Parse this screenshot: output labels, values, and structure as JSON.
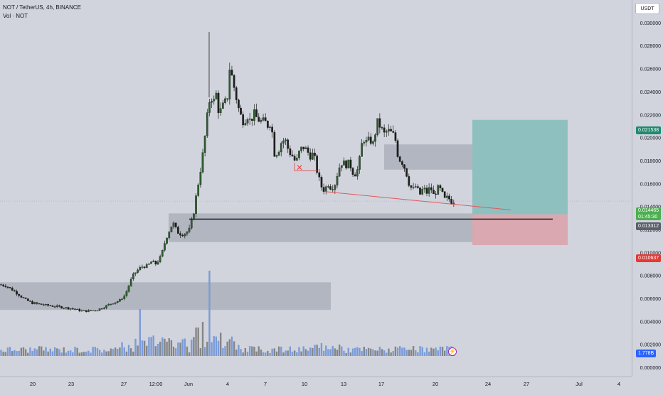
{
  "legend": {
    "symbol_line": "NOT / TetherUS, 4h, BINANCE",
    "volume_line": "Vol · NOT"
  },
  "currency_label": "USDT",
  "price_tags": {
    "take_profit": "0.021538",
    "last_price": "0.014465",
    "countdown": "01:45:30",
    "entry": "0.013312",
    "stop_loss": "0.010637",
    "volume": "1.778B"
  },
  "colors": {
    "background": "#d1d4dc",
    "candle_up": "#2e5e2e",
    "candle_down": "#1e1e1e",
    "volume_up": "#7b9bd8",
    "volume_down": "#858585",
    "take_profit_zone": "#8fc0c0",
    "stop_loss_zone": "#d9a8b0",
    "last_price_tag": "#4caf50",
    "take_profit_tag": "#1e8a6e",
    "stop_loss_tag": "#e53935",
    "entry_tag": "#5d606b",
    "volume_tag": "#2962ff"
  },
  "chart_data": {
    "type": "candlestick",
    "y_ticks": [
      "0.030000",
      "0.028000",
      "0.026000",
      "0.024000",
      "0.022000",
      "0.020000",
      "0.018000",
      "0.016000",
      "0.014000",
      "0.012000",
      "0.010000",
      "0.008000",
      "0.006000",
      "0.004000",
      "0.002000",
      "0.000000"
    ],
    "x_ticks": [
      "20",
      "23",
      "27",
      "12:00",
      "Jun",
      "4",
      "7",
      "10",
      "13",
      "17",
      "20",
      "24",
      "27",
      "Jul",
      "4"
    ],
    "price_path": [
      [
        0,
        0.0072
      ],
      [
        8,
        0.0071
      ],
      [
        16,
        0.0068
      ],
      [
        25,
        0.0064
      ],
      [
        35,
        0.0059
      ],
      [
        45,
        0.0056
      ],
      [
        55,
        0.0055
      ],
      [
        65,
        0.0054
      ],
      [
        78,
        0.0053
      ],
      [
        90,
        0.0052
      ],
      [
        102,
        0.0051
      ],
      [
        115,
        0.0049
      ],
      [
        125,
        0.0049
      ],
      [
        137,
        0.005
      ],
      [
        148,
        0.0053
      ],
      [
        158,
        0.0056
      ],
      [
        168,
        0.0058
      ],
      [
        176,
        0.0063
      ],
      [
        181,
        0.0071
      ],
      [
        186,
        0.0079
      ],
      [
        191,
        0.0083
      ],
      [
        196,
        0.0086
      ],
      [
        201,
        0.0088
      ],
      [
        207,
        0.0088
      ],
      [
        213,
        0.0092
      ],
      [
        219,
        0.009
      ],
      [
        225,
        0.0095
      ],
      [
        229,
        0.0102
      ],
      [
        233,
        0.0112
      ],
      [
        238,
        0.0119
      ],
      [
        243,
        0.0126
      ],
      [
        249,
        0.0118
      ],
      [
        255,
        0.0116
      ],
      [
        261,
        0.0117
      ],
      [
        267,
        0.012
      ],
      [
        272,
        0.0134
      ],
      [
        276,
        0.015
      ],
      [
        280,
        0.0165
      ],
      [
        284,
        0.018
      ],
      [
        288,
        0.02
      ],
      [
        292,
        0.0222
      ],
      [
        296,
        0.0238
      ],
      [
        300,
        0.023
      ],
      [
        304,
        0.0238
      ],
      [
        308,
        0.022
      ],
      [
        312,
        0.0226
      ],
      [
        316,
        0.023
      ],
      [
        320,
        0.0236
      ],
      [
        323,
        0.0262
      ],
      [
        327,
        0.025
      ],
      [
        331,
        0.0238
      ],
      [
        335,
        0.0226
      ],
      [
        339,
        0.0218
      ],
      [
        343,
        0.0213
      ],
      [
        347,
        0.022
      ],
      [
        352,
        0.0214
      ],
      [
        357,
        0.0221
      ],
      [
        362,
        0.0216
      ],
      [
        367,
        0.0214
      ],
      [
        372,
        0.0214
      ],
      [
        377,
        0.021
      ],
      [
        381,
        0.0214
      ],
      [
        386,
        0.0185
      ],
      [
        391,
        0.0188
      ],
      [
        396,
        0.0197
      ],
      [
        401,
        0.0198
      ],
      [
        406,
        0.0188
      ],
      [
        411,
        0.0184
      ],
      [
        416,
        0.0178
      ],
      [
        421,
        0.0188
      ],
      [
        426,
        0.0192
      ],
      [
        431,
        0.0189
      ],
      [
        436,
        0.0184
      ],
      [
        441,
        0.0186
      ],
      [
        446,
        0.017
      ],
      [
        451,
        0.0158
      ],
      [
        456,
        0.0154
      ],
      [
        461,
        0.016
      ],
      [
        466,
        0.0156
      ],
      [
        471,
        0.016
      ],
      [
        476,
        0.0173
      ],
      [
        481,
        0.0179
      ],
      [
        486,
        0.0176
      ],
      [
        491,
        0.0178
      ],
      [
        496,
        0.017
      ],
      [
        501,
        0.0168
      ],
      [
        506,
        0.0182
      ],
      [
        510,
        0.02
      ],
      [
        515,
        0.0196
      ],
      [
        520,
        0.0198
      ],
      [
        525,
        0.0194
      ],
      [
        530,
        0.0214
      ],
      [
        535,
        0.0209
      ],
      [
        540,
        0.0203
      ],
      [
        545,
        0.0206
      ],
      [
        550,
        0.0204
      ],
      [
        555,
        0.0201
      ],
      [
        560,
        0.0182
      ],
      [
        565,
        0.0179
      ],
      [
        570,
        0.0172
      ],
      [
        575,
        0.016
      ],
      [
        580,
        0.0154
      ],
      [
        585,
        0.0158
      ],
      [
        590,
        0.015
      ],
      [
        595,
        0.0156
      ],
      [
        600,
        0.0152
      ],
      [
        605,
        0.0157
      ],
      [
        610,
        0.0149
      ],
      [
        615,
        0.0156
      ],
      [
        620,
        0.0154
      ],
      [
        625,
        0.0146
      ],
      [
        630,
        0.0148
      ],
      [
        634,
        0.0144
      ],
      [
        638,
        0.0145
      ]
    ],
    "spike_high": 0.0292,
    "zones": {
      "lower_demand": [
        0.005,
        0.0074
      ],
      "mid_demand": [
        0.0109,
        0.0134
      ],
      "supply": [
        0.0172,
        0.0194
      ],
      "take_profit": [
        0.013312,
        0.021538
      ],
      "stop_loss": [
        0.010637,
        0.013312
      ]
    },
    "entry_price": 0.013312,
    "trendline": [
      0.0153,
      0.0137
    ],
    "x_mark": 0.0174
  }
}
